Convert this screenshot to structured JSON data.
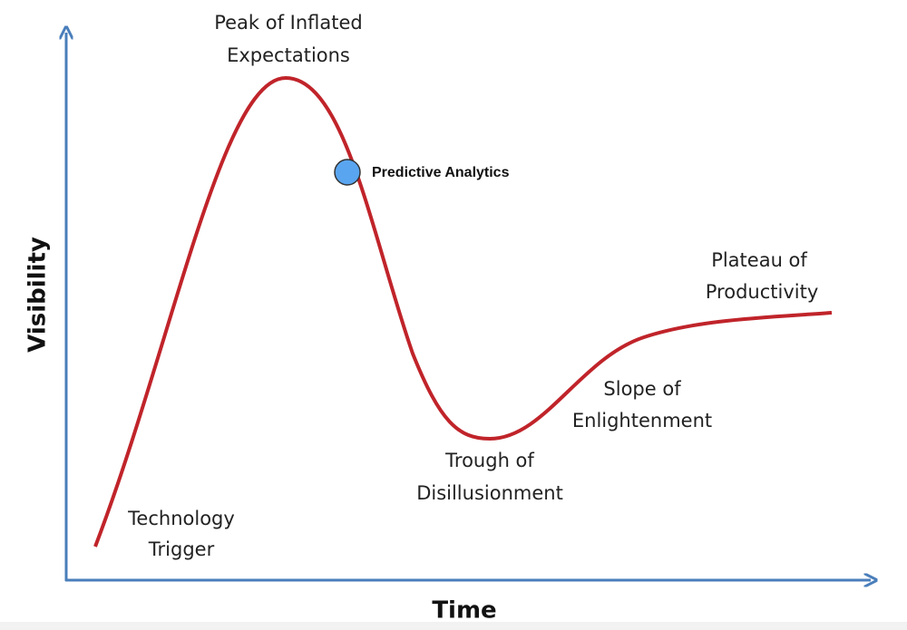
{
  "axes": {
    "x_label": "Time",
    "y_label": "Visibility"
  },
  "phases": [
    {
      "lines": [
        "Technology",
        "Trigger"
      ]
    },
    {
      "lines": [
        "Peak of Inflated",
        "Expectations"
      ]
    },
    {
      "lines": [
        "Trough of",
        "Disillusionment"
      ]
    },
    {
      "lines": [
        "Slope of",
        "Enlightenment"
      ]
    },
    {
      "lines": [
        "Plateau of",
        "Productivity"
      ]
    }
  ],
  "marker": {
    "label": "Predictive Analytics"
  }
}
